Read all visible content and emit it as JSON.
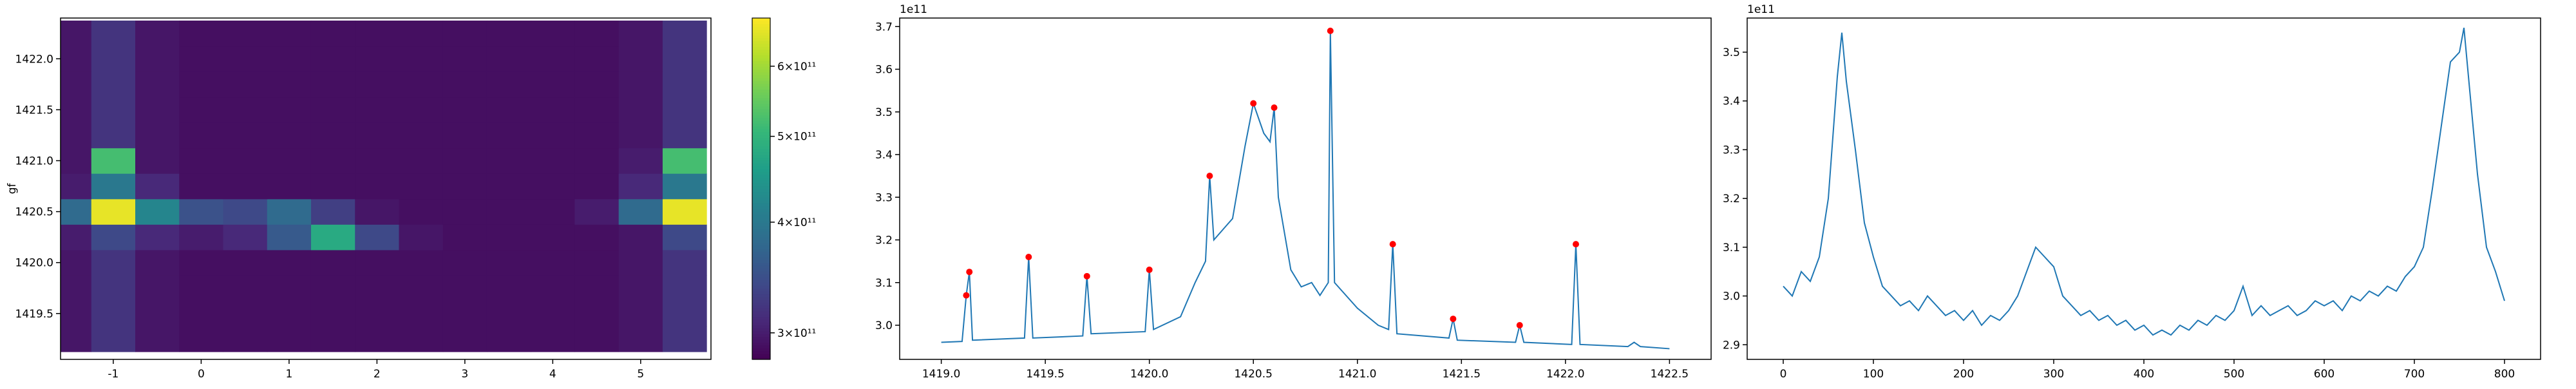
{
  "chart_data": [
    {
      "type": "heatmap",
      "ylabel": "gf",
      "colormap": "viridis",
      "x": [
        -1.5,
        -1,
        -0.5,
        0,
        0.5,
        1,
        1.5,
        2,
        2.5,
        3,
        3.5,
        4,
        4.5,
        5,
        5.5
      ],
      "y": [
        1419.25,
        1419.5,
        1419.75,
        1420.0,
        1420.25,
        1420.5,
        1420.75,
        1421.0,
        1421.25,
        1421.5,
        1421.75,
        1422.0,
        1422.25
      ],
      "z": [
        [
          295000000000.0,
          320000000000.0,
          295000000000.0,
          290000000000.0,
          290000000000.0,
          290000000000.0,
          290000000000.0,
          290000000000.0,
          290000000000.0,
          290000000000.0,
          290000000000.0,
          290000000000.0,
          290000000000.0,
          295000000000.0,
          320000000000.0
        ],
        [
          295000000000.0,
          320000000000.0,
          295000000000.0,
          290000000000.0,
          290000000000.0,
          290000000000.0,
          290000000000.0,
          290000000000.0,
          290000000000.0,
          290000000000.0,
          290000000000.0,
          290000000000.0,
          290000000000.0,
          295000000000.0,
          320000000000.0
        ],
        [
          295000000000.0,
          320000000000.0,
          295000000000.0,
          290000000000.0,
          290000000000.0,
          290000000000.0,
          290000000000.0,
          290000000000.0,
          290000000000.0,
          290000000000.0,
          290000000000.0,
          290000000000.0,
          290000000000.0,
          295000000000.0,
          320000000000.0
        ],
        [
          295000000000.0,
          320000000000.0,
          295000000000.0,
          290000000000.0,
          290000000000.0,
          290000000000.0,
          290000000000.0,
          290000000000.0,
          290000000000.0,
          290000000000.0,
          290000000000.0,
          290000000000.0,
          290000000000.0,
          295000000000.0,
          320000000000.0
        ],
        [
          300000000000.0,
          340000000000.0,
          310000000000.0,
          300000000000.0,
          310000000000.0,
          360000000000.0,
          480000000000.0,
          340000000000.0,
          295000000000.0,
          290000000000.0,
          290000000000.0,
          290000000000.0,
          290000000000.0,
          295000000000.0,
          340000000000.0
        ],
        [
          380000000000.0,
          660000000000.0,
          420000000000.0,
          350000000000.0,
          340000000000.0,
          380000000000.0,
          330000000000.0,
          295000000000.0,
          290000000000.0,
          290000000000.0,
          290000000000.0,
          290000000000.0,
          300000000000.0,
          380000000000.0,
          660000000000.0
        ],
        [
          300000000000.0,
          400000000000.0,
          310000000000.0,
          290000000000.0,
          290000000000.0,
          290000000000.0,
          290000000000.0,
          290000000000.0,
          290000000000.0,
          290000000000.0,
          290000000000.0,
          290000000000.0,
          290000000000.0,
          310000000000.0,
          400000000000.0
        ],
        [
          295000000000.0,
          520000000000.0,
          295000000000.0,
          290000000000.0,
          290000000000.0,
          290000000000.0,
          290000000000.0,
          290000000000.0,
          290000000000.0,
          290000000000.0,
          290000000000.0,
          290000000000.0,
          290000000000.0,
          300000000000.0,
          520000000000.0
        ],
        [
          295000000000.0,
          320000000000.0,
          295000000000.0,
          290000000000.0,
          290000000000.0,
          290000000000.0,
          290000000000.0,
          290000000000.0,
          290000000000.0,
          290000000000.0,
          290000000000.0,
          290000000000.0,
          290000000000.0,
          295000000000.0,
          320000000000.0
        ],
        [
          295000000000.0,
          320000000000.0,
          295000000000.0,
          290000000000.0,
          290000000000.0,
          290000000000.0,
          290000000000.0,
          290000000000.0,
          290000000000.0,
          290000000000.0,
          290000000000.0,
          290000000000.0,
          290000000000.0,
          295000000000.0,
          320000000000.0
        ],
        [
          295000000000.0,
          320000000000.0,
          295000000000.0,
          290000000000.0,
          290000000000.0,
          290000000000.0,
          290000000000.0,
          290000000000.0,
          290000000000.0,
          290000000000.0,
          290000000000.0,
          290000000000.0,
          290000000000.0,
          295000000000.0,
          320000000000.0
        ],
        [
          295000000000.0,
          320000000000.0,
          295000000000.0,
          290000000000.0,
          290000000000.0,
          290000000000.0,
          290000000000.0,
          290000000000.0,
          290000000000.0,
          290000000000.0,
          290000000000.0,
          290000000000.0,
          290000000000.0,
          295000000000.0,
          320000000000.0
        ],
        [
          295000000000.0,
          320000000000.0,
          295000000000.0,
          290000000000.0,
          290000000000.0,
          290000000000.0,
          290000000000.0,
          290000000000.0,
          290000000000.0,
          290000000000.0,
          290000000000.0,
          290000000000.0,
          290000000000.0,
          295000000000.0,
          320000000000.0
        ]
      ],
      "xlim": [
        -1.6,
        5.8
      ],
      "ylim": [
        1419.05,
        1422.4
      ],
      "xticks": [
        -1,
        0,
        1,
        2,
        3,
        4,
        5
      ],
      "yticks": [
        1419.5,
        {
          "value": 1420,
          "label": "1420.0"
        },
        1420.5,
        {
          "value": 1421,
          "label": "1421.0"
        },
        1421.5,
        {
          "value": 1422,
          "label": "1422.0"
        }
      ],
      "colorbar": {
        "scale": "log",
        "lim": [
          280000000000.0,
          680000000000.0
        ],
        "ticks": [
          {
            "value": 300000000000.0,
            "label": "3×10¹¹"
          },
          {
            "value": 400000000000.0,
            "label": "4×10¹¹"
          },
          {
            "value": 500000000000.0,
            "label": "5×10¹¹"
          },
          {
            "value": 600000000000.0,
            "label": "6×10¹¹"
          }
        ]
      }
    },
    {
      "type": "line",
      "offset_label": "1e11",
      "color": "#1f77b4",
      "x": [
        1419.0,
        1419.1,
        1419.12,
        1419.135,
        1419.15,
        1419.4,
        1419.42,
        1419.44,
        1419.68,
        1419.7,
        1419.72,
        1419.98,
        1420.0,
        1420.02,
        1420.15,
        1420.22,
        1420.27,
        1420.29,
        1420.31,
        1420.4,
        1420.46,
        1420.5,
        1420.55,
        1420.58,
        1420.6,
        1420.62,
        1420.68,
        1420.73,
        1420.78,
        1420.82,
        1420.86,
        1420.87,
        1420.89,
        1421.0,
        1421.1,
        1421.15,
        1421.17,
        1421.19,
        1421.44,
        1421.46,
        1421.48,
        1421.76,
        1421.78,
        1421.8,
        1422.03,
        1422.05,
        1422.07,
        1422.3,
        1422.33,
        1422.36,
        1422.5
      ],
      "values": [
        2.96,
        2.962,
        3.07,
        3.125,
        2.965,
        2.97,
        3.16,
        2.97,
        2.975,
        3.115,
        2.98,
        2.985,
        3.13,
        2.99,
        3.02,
        3.1,
        3.15,
        3.35,
        3.2,
        3.25,
        3.42,
        3.52,
        3.45,
        3.43,
        3.51,
        3.3,
        3.13,
        3.09,
        3.1,
        3.07,
        3.1,
        3.69,
        3.1,
        3.04,
        3.0,
        2.99,
        3.19,
        2.98,
        2.97,
        3.015,
        2.965,
        2.96,
        3.0,
        2.96,
        2.955,
        3.19,
        2.955,
        2.95,
        2.96,
        2.95,
        2.945
      ],
      "peaks": {
        "color": "red",
        "x": [
          1419.12,
          1419.135,
          1419.42,
          1419.7,
          1420.0,
          1420.29,
          1420.5,
          1420.6,
          1420.87,
          1421.17,
          1421.46,
          1421.78,
          1422.05
        ],
        "values": [
          3.07,
          3.125,
          3.16,
          3.115,
          3.13,
          3.35,
          3.52,
          3.51,
          3.69,
          3.19,
          3.015,
          3.0,
          3.19
        ]
      },
      "xlim": [
        1418.8,
        1422.7
      ],
      "ylim": [
        2.92,
        3.72
      ],
      "xticks": [
        {
          "value": 1419,
          "label": "1419.0"
        },
        1419.5,
        {
          "value": 1420,
          "label": "1420.0"
        },
        1420.5,
        {
          "value": 1421,
          "label": "1421.0"
        },
        1421.5,
        {
          "value": 1422,
          "label": "1422.0"
        },
        1422.5
      ],
      "yticks": [
        {
          "value": 3,
          "label": "3.0"
        },
        3.1,
        3.2,
        3.3,
        3.4,
        3.5,
        3.6,
        3.7
      ]
    },
    {
      "type": "line",
      "offset_label": "1e11",
      "color": "#1f77b4",
      "x": [
        0,
        10,
        20,
        30,
        40,
        50,
        60,
        65,
        70,
        80,
        90,
        100,
        110,
        120,
        130,
        140,
        150,
        160,
        170,
        180,
        190,
        200,
        210,
        220,
        230,
        240,
        250,
        260,
        270,
        280,
        290,
        300,
        310,
        320,
        330,
        340,
        350,
        360,
        370,
        380,
        390,
        400,
        410,
        420,
        430,
        440,
        450,
        460,
        470,
        480,
        490,
        500,
        510,
        520,
        530,
        540,
        550,
        560,
        570,
        580,
        590,
        600,
        610,
        620,
        630,
        640,
        650,
        660,
        670,
        680,
        690,
        700,
        710,
        720,
        730,
        740,
        750,
        755,
        760,
        770,
        780,
        790,
        800
      ],
      "values": [
        3.02,
        3.0,
        3.05,
        3.03,
        3.08,
        3.2,
        3.45,
        3.54,
        3.44,
        3.3,
        3.15,
        3.08,
        3.02,
        3.0,
        2.98,
        2.99,
        2.97,
        3.0,
        2.98,
        2.96,
        2.97,
        2.95,
        2.97,
        2.94,
        2.96,
        2.95,
        2.97,
        3.0,
        3.05,
        3.1,
        3.08,
        3.06,
        3.0,
        2.98,
        2.96,
        2.97,
        2.95,
        2.96,
        2.94,
        2.95,
        2.93,
        2.94,
        2.92,
        2.93,
        2.92,
        2.94,
        2.93,
        2.95,
        2.94,
        2.96,
        2.95,
        2.97,
        3.02,
        2.96,
        2.98,
        2.96,
        2.97,
        2.98,
        2.96,
        2.97,
        2.99,
        2.98,
        2.99,
        2.97,
        3.0,
        2.99,
        3.01,
        3.0,
        3.02,
        3.01,
        3.04,
        3.06,
        3.1,
        3.22,
        3.35,
        3.48,
        3.5,
        3.55,
        3.45,
        3.25,
        3.1,
        3.05,
        2.99
      ],
      "xlim": [
        -40,
        840
      ],
      "ylim": [
        2.87,
        3.57
      ],
      "xticks": [
        0,
        100,
        200,
        300,
        400,
        500,
        600,
        700,
        800
      ],
      "yticks": [
        2.9,
        {
          "value": 3,
          "label": "3.0"
        },
        3.1,
        3.2,
        3.3,
        3.4,
        3.5
      ]
    }
  ]
}
